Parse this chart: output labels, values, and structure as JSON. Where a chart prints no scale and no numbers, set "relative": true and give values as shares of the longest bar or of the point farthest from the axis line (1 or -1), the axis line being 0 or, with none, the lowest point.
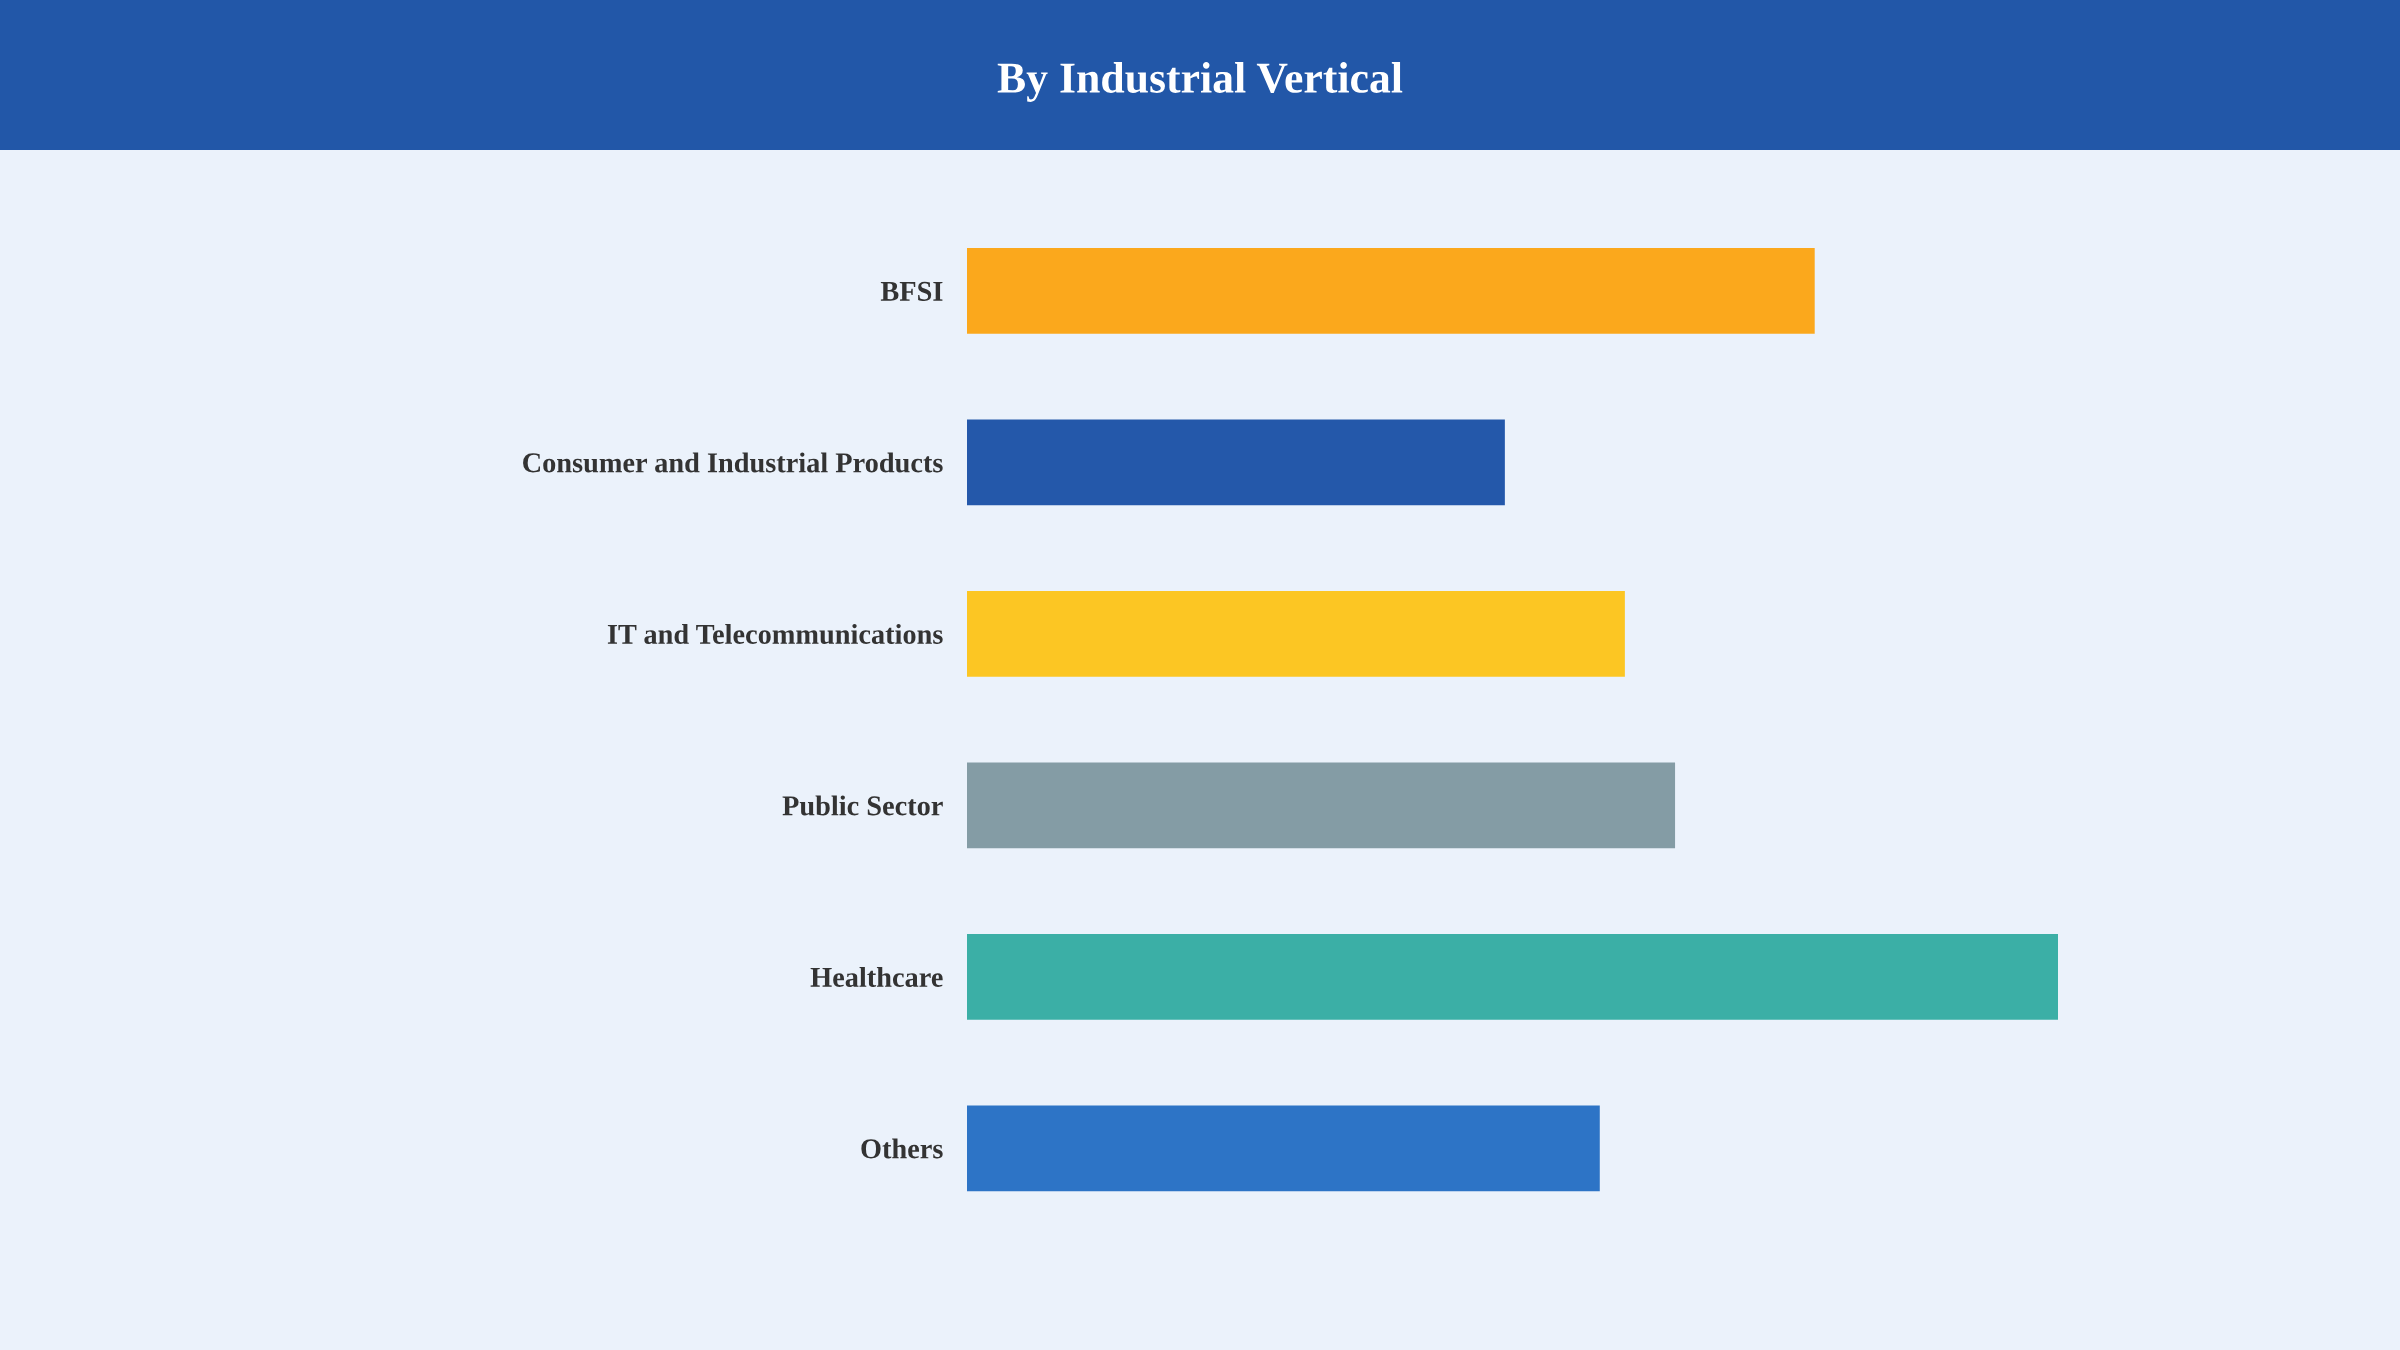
{
  "chart_data": {
    "type": "bar",
    "orientation": "horizontal",
    "relative": true,
    "title": "By Industrial Vertical",
    "categories": [
      "BFSI",
      "Consumer and Industrial Products",
      "IT and Telecommunications",
      "Public Sector",
      "Healthcare",
      "Others"
    ],
    "values": [
      0.777,
      0.493,
      0.603,
      0.649,
      1,
      0.58
    ],
    "colors": [
      "#fba81c",
      "#2458aa",
      "#fcc623",
      "#849ca5",
      "#3bafa6",
      "#2d74c6"
    ]
  }
}
